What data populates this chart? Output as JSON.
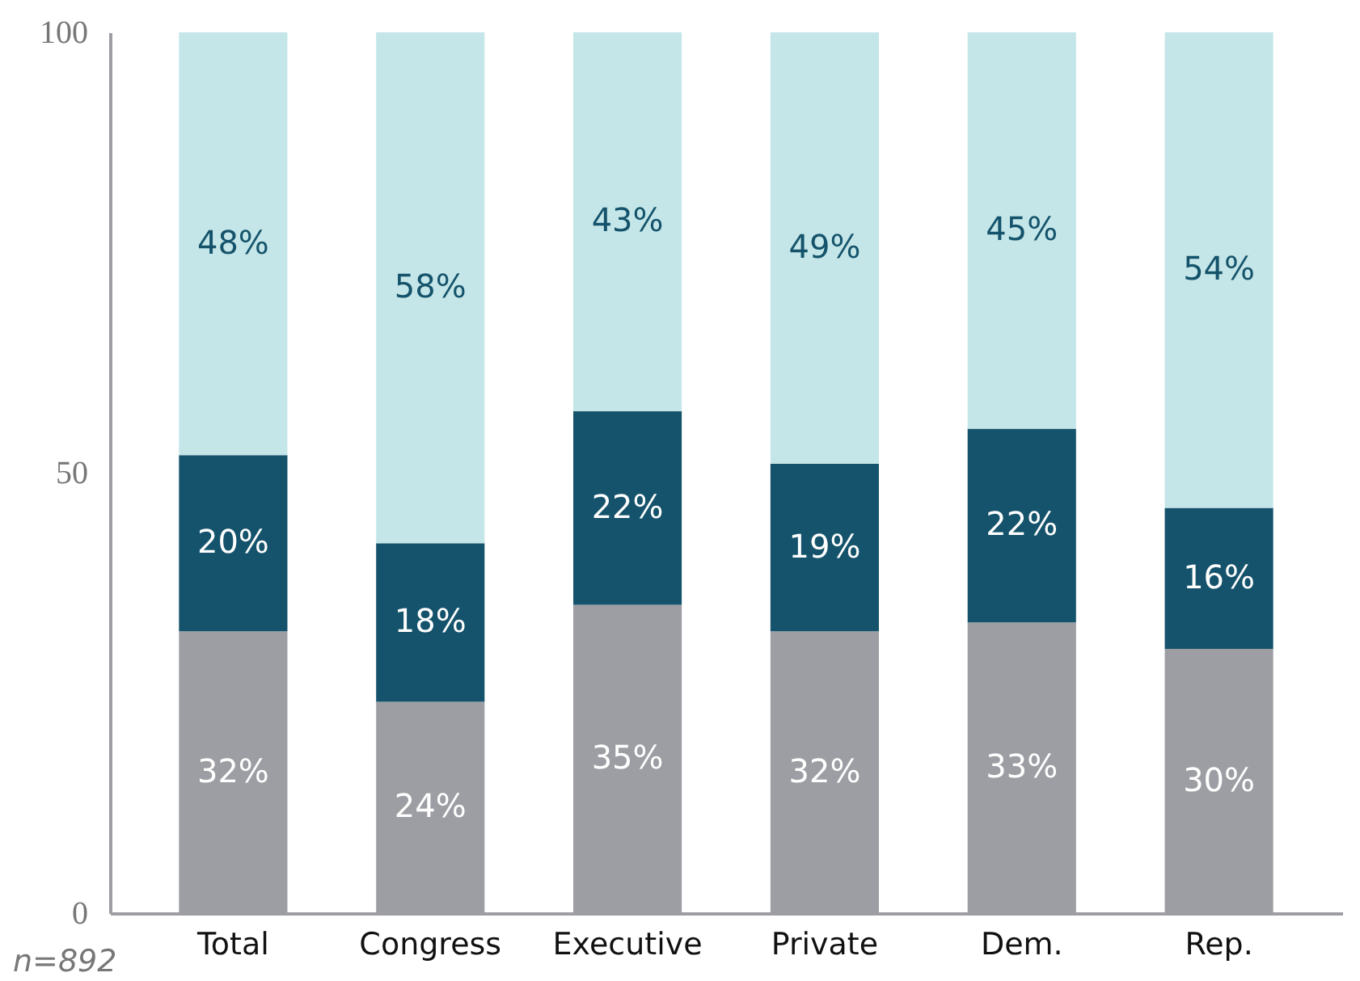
{
  "chart_data": {
    "type": "bar",
    "stacked": true,
    "categories": [
      "Total",
      "Congress",
      "Executive",
      "Private",
      "Dem.",
      "Rep."
    ],
    "series": [
      {
        "color": "#9d9ea3",
        "values": [
          32,
          24,
          35,
          32,
          33,
          30
        ],
        "value_labels": [
          "32%",
          "24%",
          "35%",
          "32%",
          "33%",
          "30%"
        ]
      },
      {
        "color": "#14536b",
        "values": [
          20,
          18,
          22,
          19,
          22,
          16
        ],
        "value_labels": [
          "20%",
          "18%",
          "22%",
          "19%",
          "22%",
          "16%"
        ]
      },
      {
        "color": "#c5e6e8",
        "values": [
          48,
          58,
          43,
          49,
          45,
          54
        ],
        "value_labels": [
          "48%",
          "58%",
          "43%",
          "49%",
          "45%",
          "54%"
        ]
      }
    ],
    "ylim": [
      0,
      100
    ],
    "yticks": [
      0,
      50,
      100
    ],
    "grid": false,
    "annotations": [
      "n=892"
    ]
  }
}
